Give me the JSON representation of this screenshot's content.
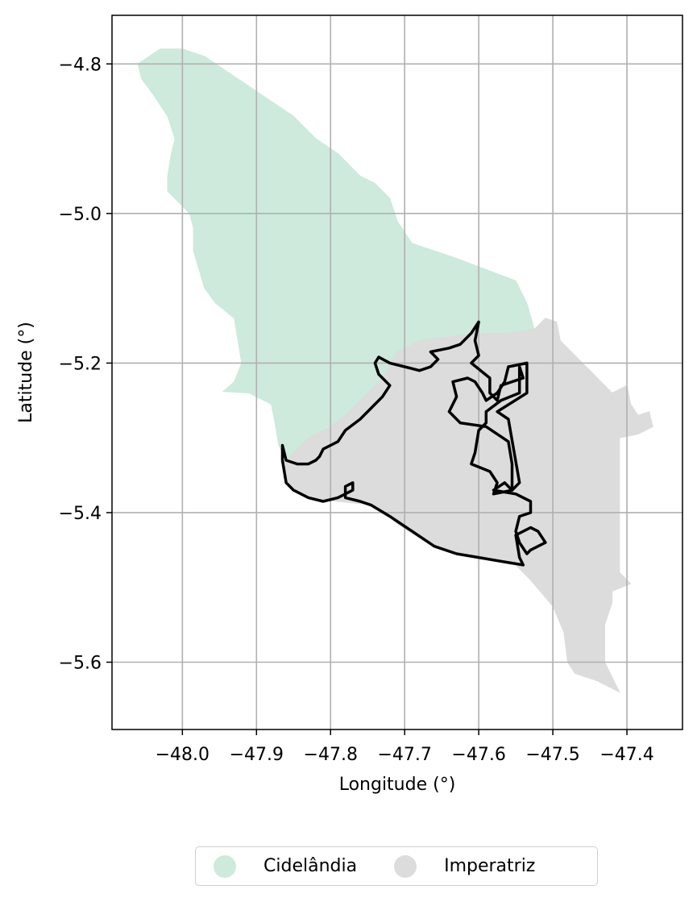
{
  "axes": {
    "xlabel": "Longitude (°)",
    "ylabel": "Latitude (°)",
    "xlim": [
      -48.095,
      -47.325
    ],
    "ylim": [
      -5.69,
      -4.735
    ],
    "xticks": [
      -48.0,
      -47.9,
      -47.8,
      -47.7,
      -47.6,
      -47.5,
      -47.4
    ],
    "yticks": [
      -4.8,
      -5.0,
      -5.2,
      -5.4,
      -5.6
    ],
    "xtick_labels": [
      "−48.0",
      "−47.9",
      "−47.8",
      "−47.7",
      "−47.6",
      "−47.5",
      "−47.4"
    ],
    "ytick_labels": [
      "−4.8",
      "−5.0",
      "−5.2",
      "−5.4",
      "−5.6"
    ],
    "grid": true
  },
  "regions": [
    {
      "name": "Cidelândia",
      "color": "#cdeadc",
      "polygon": [
        [
          -48.06,
          -4.8
        ],
        [
          -48.03,
          -4.78
        ],
        [
          -48.0,
          -4.78
        ],
        [
          -47.97,
          -4.79
        ],
        [
          -47.94,
          -4.81
        ],
        [
          -47.91,
          -4.83
        ],
        [
          -47.88,
          -4.85
        ],
        [
          -47.85,
          -4.87
        ],
        [
          -47.82,
          -4.9
        ],
        [
          -47.79,
          -4.92
        ],
        [
          -47.76,
          -4.95
        ],
        [
          -47.74,
          -4.96
        ],
        [
          -47.72,
          -4.98
        ],
        [
          -47.71,
          -5.01
        ],
        [
          -47.69,
          -5.04
        ],
        [
          -47.63,
          -5.06
        ],
        [
          -47.55,
          -5.09
        ],
        [
          -47.535,
          -5.12
        ],
        [
          -47.525,
          -5.155
        ],
        [
          -47.56,
          -5.16
        ],
        [
          -47.6,
          -5.16
        ],
        [
          -47.64,
          -5.165
        ],
        [
          -47.68,
          -5.17
        ],
        [
          -47.71,
          -5.185
        ],
        [
          -47.73,
          -5.22
        ],
        [
          -47.76,
          -5.25
        ],
        [
          -47.78,
          -5.27
        ],
        [
          -47.8,
          -5.285
        ],
        [
          -47.83,
          -5.3
        ],
        [
          -47.845,
          -5.315
        ],
        [
          -47.86,
          -5.33
        ],
        [
          -47.87,
          -5.31
        ],
        [
          -47.875,
          -5.28
        ],
        [
          -47.88,
          -5.255
        ],
        [
          -47.91,
          -5.24
        ],
        [
          -47.945,
          -5.238
        ],
        [
          -47.93,
          -5.225
        ],
        [
          -47.92,
          -5.2
        ],
        [
          -47.925,
          -5.17
        ],
        [
          -47.93,
          -5.14
        ],
        [
          -47.955,
          -5.12
        ],
        [
          -47.97,
          -5.1
        ],
        [
          -47.985,
          -5.05
        ],
        [
          -47.985,
          -5.02
        ],
        [
          -47.99,
          -5.0
        ],
        [
          -48.02,
          -4.97
        ],
        [
          -48.02,
          -4.95
        ],
        [
          -48.015,
          -4.92
        ],
        [
          -48.01,
          -4.9
        ],
        [
          -48.02,
          -4.87
        ],
        [
          -48.04,
          -4.84
        ],
        [
          -48.055,
          -4.82
        ]
      ]
    },
    {
      "name": "Imperatriz",
      "color": "#dcdcdc",
      "polygon": [
        [
          -47.525,
          -5.155
        ],
        [
          -47.51,
          -5.14
        ],
        [
          -47.495,
          -5.145
        ],
        [
          -47.49,
          -5.17
        ],
        [
          -47.47,
          -5.19
        ],
        [
          -47.45,
          -5.21
        ],
        [
          -47.42,
          -5.24
        ],
        [
          -47.4,
          -5.23
        ],
        [
          -47.395,
          -5.255
        ],
        [
          -47.385,
          -5.27
        ],
        [
          -47.37,
          -5.265
        ],
        [
          -47.365,
          -5.285
        ],
        [
          -47.385,
          -5.295
        ],
        [
          -47.41,
          -5.3
        ],
        [
          -47.41,
          -5.35
        ],
        [
          -47.41,
          -5.4
        ],
        [
          -47.41,
          -5.45
        ],
        [
          -47.41,
          -5.48
        ],
        [
          -47.395,
          -5.495
        ],
        [
          -47.42,
          -5.505
        ],
        [
          -47.42,
          -5.52
        ],
        [
          -47.43,
          -5.55
        ],
        [
          -47.43,
          -5.6
        ],
        [
          -47.41,
          -5.64
        ],
        [
          -47.44,
          -5.625
        ],
        [
          -47.47,
          -5.615
        ],
        [
          -47.48,
          -5.6
        ],
        [
          -47.485,
          -5.56
        ],
        [
          -47.5,
          -5.525
        ],
        [
          -47.53,
          -5.49
        ],
        [
          -47.55,
          -5.47
        ],
        [
          -47.58,
          -5.465
        ],
        [
          -47.63,
          -5.455
        ],
        [
          -47.67,
          -5.44
        ],
        [
          -47.71,
          -5.415
        ],
        [
          -47.74,
          -5.39
        ],
        [
          -47.79,
          -5.385
        ],
        [
          -47.83,
          -5.38
        ],
        [
          -47.86,
          -5.36
        ],
        [
          -47.865,
          -5.33
        ],
        [
          -47.86,
          -5.33
        ],
        [
          -47.845,
          -5.315
        ],
        [
          -47.83,
          -5.3
        ],
        [
          -47.8,
          -5.285
        ],
        [
          -47.78,
          -5.27
        ],
        [
          -47.76,
          -5.25
        ],
        [
          -47.73,
          -5.22
        ],
        [
          -47.71,
          -5.185
        ],
        [
          -47.68,
          -5.17
        ],
        [
          -47.64,
          -5.165
        ],
        [
          -47.6,
          -5.16
        ],
        [
          -47.56,
          -5.16
        ]
      ]
    }
  ],
  "outline": {
    "color": "#000000",
    "path": [
      [
        -47.865,
        -5.31
      ],
      [
        -47.86,
        -5.33
      ],
      [
        -47.845,
        -5.335
      ],
      [
        -47.83,
        -5.335
      ],
      [
        -47.82,
        -5.33
      ],
      [
        -47.815,
        -5.325
      ],
      [
        -47.81,
        -5.315
      ],
      [
        -47.8,
        -5.31
      ],
      [
        -47.79,
        -5.305
      ],
      [
        -47.78,
        -5.29
      ],
      [
        -47.76,
        -5.275
      ],
      [
        -47.745,
        -5.26
      ],
      [
        -47.73,
        -5.245
      ],
      [
        -47.72,
        -5.23
      ],
      [
        -47.735,
        -5.215
      ],
      [
        -47.74,
        -5.2
      ],
      [
        -47.735,
        -5.192
      ],
      [
        -47.72,
        -5.2
      ],
      [
        -47.7,
        -5.205
      ],
      [
        -47.68,
        -5.21
      ],
      [
        -47.665,
        -5.205
      ],
      [
        -47.655,
        -5.195
      ],
      [
        -47.665,
        -5.185
      ],
      [
        -47.64,
        -5.18
      ],
      [
        -47.625,
        -5.175
      ],
      [
        -47.61,
        -5.16
      ],
      [
        -47.6,
        -5.145
      ],
      [
        -47.605,
        -5.17
      ],
      [
        -47.6,
        -5.19
      ],
      [
        -47.61,
        -5.2
      ],
      [
        -47.585,
        -5.22
      ],
      [
        -47.585,
        -5.24
      ],
      [
        -47.575,
        -5.25
      ],
      [
        -47.57,
        -5.23
      ],
      [
        -47.54,
        -5.22
      ],
      [
        -47.545,
        -5.205
      ],
      [
        -47.545,
        -5.24
      ],
      [
        -47.57,
        -5.25
      ],
      [
        -47.59,
        -5.265
      ],
      [
        -47.59,
        -5.28
      ],
      [
        -47.6,
        -5.29
      ],
      [
        -47.605,
        -5.32
      ],
      [
        -47.61,
        -5.335
      ],
      [
        -47.585,
        -5.345
      ],
      [
        -47.575,
        -5.36
      ],
      [
        -47.58,
        -5.375
      ],
      [
        -47.555,
        -5.37
      ],
      [
        -47.555,
        -5.335
      ],
      [
        -47.56,
        -5.305
      ],
      [
        -47.59,
        -5.285
      ],
      [
        -47.625,
        -5.28
      ],
      [
        -47.64,
        -5.265
      ],
      [
        -47.63,
        -5.245
      ],
      [
        -47.635,
        -5.225
      ],
      [
        -47.615,
        -5.22
      ],
      [
        -47.605,
        -5.225
      ],
      [
        -47.595,
        -5.24
      ],
      [
        -47.59,
        -5.25
      ],
      [
        -47.575,
        -5.24
      ],
      [
        -47.565,
        -5.225
      ],
      [
        -47.56,
        -5.205
      ],
      [
        -47.535,
        -5.2
      ],
      [
        -47.535,
        -5.24
      ],
      [
        -47.575,
        -5.265
      ],
      [
        -47.56,
        -5.275
      ],
      [
        -47.545,
        -5.36
      ],
      [
        -47.555,
        -5.37
      ],
      [
        -47.565,
        -5.36
      ],
      [
        -47.58,
        -5.37
      ],
      [
        -47.55,
        -5.375
      ],
      [
        -47.53,
        -5.385
      ],
      [
        -47.53,
        -5.4
      ],
      [
        -47.545,
        -5.405
      ],
      [
        -47.55,
        -5.425
      ],
      [
        -47.545,
        -5.44
      ],
      [
        -47.535,
        -5.455
      ],
      [
        -47.53,
        -5.45
      ],
      [
        -47.52,
        -5.445
      ],
      [
        -47.51,
        -5.44
      ],
      [
        -47.52,
        -5.425
      ],
      [
        -47.53,
        -5.42
      ],
      [
        -47.55,
        -5.43
      ],
      [
        -47.545,
        -5.46
      ],
      [
        -47.54,
        -5.47
      ],
      [
        -47.57,
        -5.465
      ],
      [
        -47.6,
        -5.46
      ],
      [
        -47.63,
        -5.455
      ],
      [
        -47.66,
        -5.445
      ],
      [
        -47.69,
        -5.425
      ],
      [
        -47.72,
        -5.405
      ],
      [
        -47.745,
        -5.39
      ],
      [
        -47.76,
        -5.385
      ],
      [
        -47.78,
        -5.38
      ],
      [
        -47.78,
        -5.365
      ],
      [
        -47.77,
        -5.36
      ],
      [
        -47.77,
        -5.37
      ],
      [
        -47.79,
        -5.38
      ],
      [
        -47.81,
        -5.385
      ],
      [
        -47.83,
        -5.38
      ],
      [
        -47.85,
        -5.37
      ],
      [
        -47.86,
        -5.36
      ],
      [
        -47.865,
        -5.33
      ],
      [
        -47.865,
        -5.31
      ]
    ]
  },
  "legend": {
    "items": [
      {
        "label": "Cidelândia",
        "color": "#cdeadc"
      },
      {
        "label": "Imperatriz",
        "color": "#dcdcdc"
      }
    ]
  }
}
